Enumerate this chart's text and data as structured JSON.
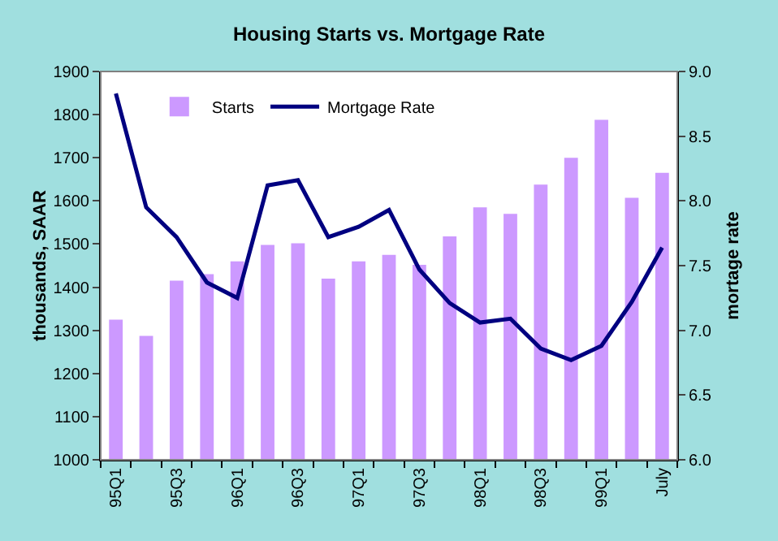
{
  "chart_data": {
    "type": "bar",
    "title": "Housing Starts vs. Mortgage Rate",
    "ylabel": "thousands, SAAR",
    "y2label": "mortage rate",
    "categories": [
      "95Q1",
      null,
      "95Q3",
      null,
      "96Q1",
      null,
      "96Q3",
      null,
      "97Q1",
      null,
      "97Q3",
      null,
      "98Q1",
      null,
      "98Q3",
      null,
      "99Q1",
      null,
      "July"
    ],
    "series": [
      {
        "name": "Starts",
        "color": "#cc99ff",
        "values": [
          1325,
          1287,
          1415,
          1430,
          1460,
          1498,
          1502,
          1420,
          1460,
          1475,
          1452,
          1518,
          1585,
          1570,
          1638,
          1700,
          1788,
          1607,
          1665
        ]
      },
      {
        "name": "Mortgage Rate",
        "type": "line",
        "axis": "y2",
        "color": "#000080",
        "values": [
          8.83,
          7.95,
          7.72,
          7.37,
          7.25,
          8.12,
          8.16,
          7.72,
          7.8,
          7.93,
          7.47,
          7.21,
          7.06,
          7.09,
          6.86,
          6.77,
          6.88,
          7.22,
          7.64
        ]
      }
    ],
    "ylim": [
      1000,
      1900
    ],
    "yticks": [
      1000,
      1100,
      1200,
      1300,
      1400,
      1500,
      1600,
      1700,
      1800,
      1900
    ],
    "y2lim": [
      6.0,
      9.0
    ],
    "y2ticks": [
      {
        "value": 6,
        "label": "6.0"
      },
      6.5,
      {
        "value": 7,
        "label": "7.0"
      },
      7.5,
      {
        "value": 8,
        "label": "8.0"
      },
      8.5,
      {
        "value": 9,
        "label": "9.0"
      }
    ],
    "legend": "top left",
    "grid": false,
    "marker": "none",
    "line_style": "solid"
  }
}
